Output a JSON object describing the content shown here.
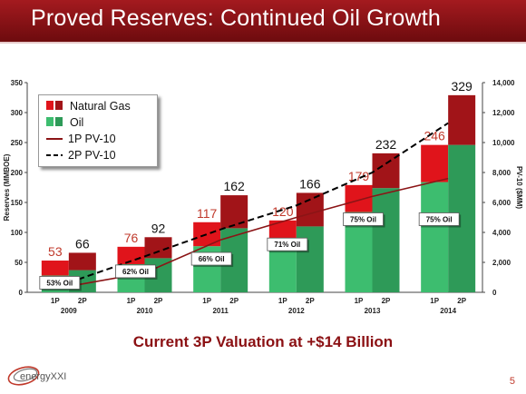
{
  "header": {
    "title": "Proved Reserves: Continued Oil Growth"
  },
  "subtitle": "Current 3P Valuation at +$14 Billion",
  "logo": {
    "text": "energyXXI"
  },
  "page_number": "5",
  "colors": {
    "gas_light": "#e0141b",
    "gas_dark": "#a11418",
    "oil_light": "#3dbd6f",
    "oil_dark": "#2e9a58",
    "pv1": "#8b1416",
    "pv2": "#000000",
    "header": "#8f1418"
  },
  "legend": {
    "items": [
      {
        "label": "Natural Gas",
        "icon": "natural-gas-swatch"
      },
      {
        "label": "Oil",
        "icon": "oil-swatch"
      },
      {
        "label": "1P PV-10",
        "icon": "solid-line-swatch"
      },
      {
        "label": "2P PV-10",
        "icon": "dashed-line-swatch"
      }
    ]
  },
  "chart_data": {
    "type": "bar",
    "ylabel": "Reserves (MMBOE)",
    "y2label": "PV-10 ($MM)",
    "ylim": [
      0,
      350
    ],
    "y2lim": [
      0,
      14000
    ],
    "yticks": [
      0,
      50,
      100,
      150,
      200,
      250,
      300,
      350
    ],
    "y2ticks": [
      "0",
      "2,000",
      "4,000",
      "6,000",
      "8,000",
      "10,000",
      "12,000",
      "14,000"
    ],
    "years": [
      "2009",
      "2010",
      "2011",
      "2012",
      "2013",
      "2014"
    ],
    "bars": [
      {
        "year": "2009",
        "type": "1P",
        "total": 53,
        "oil": 28,
        "label": "53"
      },
      {
        "year": "2009",
        "type": "2P",
        "total": 66,
        "oil": 37,
        "label": "66"
      },
      {
        "year": "2010",
        "type": "1P",
        "total": 76,
        "oil": 47,
        "label": "76"
      },
      {
        "year": "2010",
        "type": "2P",
        "total": 92,
        "oil": 57,
        "label": "92"
      },
      {
        "year": "2011",
        "type": "1P",
        "total": 117,
        "oil": 77,
        "label": "117"
      },
      {
        "year": "2011",
        "type": "2P",
        "total": 162,
        "oil": 107,
        "label": "162"
      },
      {
        "year": "2012",
        "type": "1P",
        "total": 120,
        "oil": 85,
        "label": "120"
      },
      {
        "year": "2012",
        "type": "2P",
        "total": 166,
        "oil": 110,
        "label": "166"
      },
      {
        "year": "2013",
        "type": "1P",
        "total": 179,
        "oil": 134,
        "label": "179"
      },
      {
        "year": "2013",
        "type": "2P",
        "total": 232,
        "oil": 174,
        "label": "232"
      },
      {
        "year": "2014",
        "type": "1P",
        "total": 246,
        "oil": 184,
        "label": "246"
      },
      {
        "year": "2014",
        "type": "2P",
        "total": 329,
        "oil": 246,
        "label": "329"
      }
    ],
    "oil_share_labels": [
      {
        "year": "2009",
        "text": "53% Oil",
        "y": 16
      },
      {
        "year": "2010",
        "text": "62% Oil",
        "y": 35
      },
      {
        "year": "2011",
        "text": "66% Oil",
        "y": 56
      },
      {
        "year": "2012",
        "text": "71% Oil",
        "y": 80
      },
      {
        "year": "2013",
        "text": "75% Oil",
        "y": 122
      },
      {
        "year": "2014",
        "text": "75% Oil",
        "y": 122
      }
    ],
    "series": [
      {
        "name": "1P PV-10",
        "values": [
          400,
          1300,
          3500,
          5000,
          6400,
          7600
        ]
      },
      {
        "name": "2P PV-10",
        "values": [
          650,
          2400,
          4200,
          5800,
          8000,
          11300
        ]
      }
    ],
    "grid": false,
    "legend_position": "top-left"
  }
}
